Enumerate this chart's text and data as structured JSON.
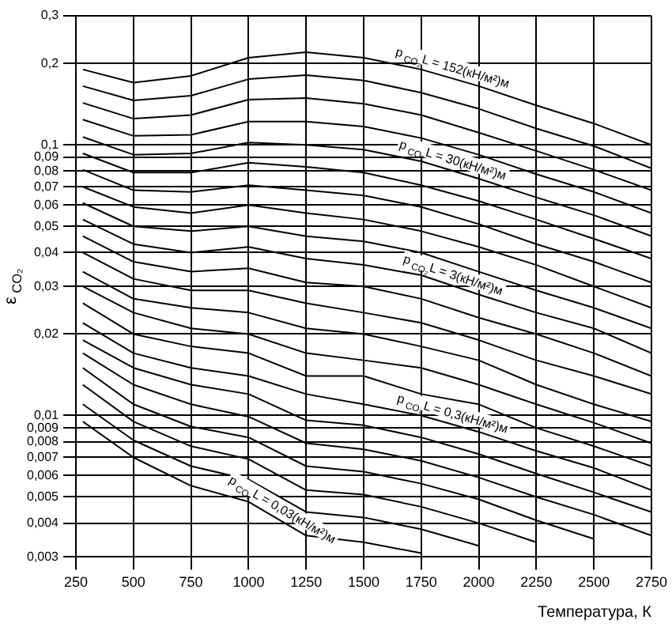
{
  "chart_data": {
    "type": "line",
    "xlabel": "Температура, К",
    "ylabel": "ε$_{CO₂}$",
    "log": "y",
    "grid": true,
    "legend": false,
    "marker": "none",
    "x": [
      280,
      500,
      750,
      1000,
      1250,
      1500,
      1750,
      2000,
      2250,
      2500,
      2750
    ],
    "xlim": [
      250,
      2750
    ],
    "xticks": [
      250,
      500,
      750,
      1000,
      1250,
      1500,
      1750,
      2000,
      2250,
      2500,
      2750
    ],
    "ylim": [
      0.003,
      0.3
    ],
    "yticks": [
      {
        "value": 0.3,
        "label": "0,3"
      },
      {
        "value": 0.2,
        "label": "0,2"
      },
      {
        "value": 0.1,
        "label": "0,1"
      },
      {
        "value": 0.09,
        "label": "0,09"
      },
      {
        "value": 0.08,
        "label": "0,08"
      },
      {
        "value": 0.07,
        "label": "0,07"
      },
      {
        "value": 0.06,
        "label": "0,06"
      },
      {
        "value": 0.05,
        "label": "0,05"
      },
      {
        "value": 0.04,
        "label": "0,04"
      },
      {
        "value": 0.03,
        "label": "0,03"
      },
      {
        "value": 0.02,
        "label": "0,02"
      },
      {
        "value": 0.01,
        "label": "0,01"
      },
      {
        "value": 0.009,
        "label": "0,009"
      },
      {
        "value": 0.008,
        "label": "0,008"
      },
      {
        "value": 0.007,
        "label": "0,007"
      },
      {
        "value": 0.006,
        "label": "0,006"
      },
      {
        "value": 0.005,
        "label": "0,005"
      },
      {
        "value": 0.004,
        "label": "0,004"
      },
      {
        "value": 0.003,
        "label": "0,003"
      }
    ],
    "series": [
      {
        "name": "p$_{CO₂}$L = 152(кН/м²)м",
        "color": "#000000",
        "values": [
          0.19,
          0.17,
          0.18,
          0.21,
          0.22,
          0.21,
          0.19,
          0.165,
          0.14,
          0.12,
          0.1
        ]
      },
      {
        "color": "#000000",
        "values": [
          0.165,
          0.146,
          0.152,
          0.175,
          0.181,
          0.173,
          0.156,
          0.136,
          0.115,
          0.099,
          0.082
        ]
      },
      {
        "color": "#000000",
        "values": [
          0.143,
          0.125,
          0.129,
          0.147,
          0.149,
          0.142,
          0.129,
          0.111,
          0.095,
          0.081,
          0.068
        ]
      },
      {
        "color": "#000000",
        "values": [
          0.124,
          0.108,
          0.109,
          0.122,
          0.122,
          0.117,
          0.106,
          0.092,
          0.078,
          0.067,
          0.056
        ]
      },
      {
        "name": "p$_{CO₂}$L = 30(кН/м²)м",
        "color": "#000000",
        "values": [
          0.107,
          0.092,
          0.093,
          0.102,
          0.1,
          0.096,
          0.087,
          0.075,
          0.064,
          0.055,
          0.046
        ]
      },
      {
        "color": "#000000",
        "values": [
          0.093,
          0.079,
          0.079,
          0.086,
          0.083,
          0.079,
          0.071,
          0.062,
          0.053,
          0.045,
          0.038
        ]
      },
      {
        "color": "#000000",
        "values": [
          0.081,
          0.068,
          0.067,
          0.071,
          0.068,
          0.065,
          0.059,
          0.051,
          0.043,
          0.037,
          0.031
        ]
      },
      {
        "color": "#000000",
        "values": [
          0.07,
          0.059,
          0.056,
          0.06,
          0.056,
          0.053,
          0.048,
          0.042,
          0.036,
          0.03,
          0.025
        ]
      },
      {
        "color": "#000000",
        "values": [
          0.061,
          0.05,
          0.048,
          0.05,
          0.046,
          0.044,
          0.04,
          0.034,
          0.029,
          0.025,
          0.021
        ]
      },
      {
        "name": "p$_{CO₂}$L = 3(кН/м²)м",
        "color": "#000000",
        "values": [
          0.053,
          0.043,
          0.04,
          0.042,
          0.038,
          0.036,
          0.033,
          0.028,
          0.024,
          0.021,
          0.017
        ]
      },
      {
        "color": "#000000",
        "values": [
          0.046,
          0.037,
          0.034,
          0.035,
          0.031,
          0.03,
          0.027,
          0.023,
          0.02,
          0.017,
          0.014
        ]
      },
      {
        "color": "#000000",
        "values": [
          0.04,
          0.032,
          0.029,
          0.029,
          0.026,
          0.024,
          0.022,
          0.019,
          0.016,
          0.014,
          0.012
        ]
      },
      {
        "color": "#000000",
        "values": [
          0.034,
          0.027,
          0.025,
          0.024,
          0.021,
          0.02,
          0.018,
          0.016,
          0.013,
          0.011,
          0.0095
        ]
      },
      {
        "color": "#000000",
        "values": [
          0.03,
          0.024,
          0.021,
          0.02,
          0.017,
          0.016,
          0.015,
          0.013,
          0.011,
          0.0094,
          0.0079
        ]
      },
      {
        "color": "#000000",
        "values": [
          0.026,
          0.02,
          0.018,
          0.017,
          0.014,
          0.014,
          0.012,
          0.011,
          0.009,
          0.0077,
          0.0065
        ]
      },
      {
        "name": "p$_{CO₂}$L = 0,3(кН/м²)м",
        "color": "#000000",
        "values": [
          0.022,
          0.017,
          0.015,
          0.014,
          0.012,
          0.011,
          0.01,
          0.0087,
          0.0074,
          0.0064,
          0.0053
        ]
      },
      {
        "color": "#000000",
        "values": [
          0.019,
          0.015,
          0.013,
          0.012,
          0.0096,
          0.0092,
          0.0083,
          0.0072,
          0.0061,
          0.0052,
          0.0044
        ]
      },
      {
        "color": "#000000",
        "values": [
          0.017,
          0.013,
          0.011,
          0.0099,
          0.0079,
          0.0075,
          0.0068,
          0.0059,
          0.005,
          0.0043,
          0.0036
        ]
      },
      {
        "color": "#000000",
        "values": [
          0.015,
          0.011,
          0.0091,
          0.0083,
          0.0065,
          0.0062,
          0.0056,
          0.0049,
          0.0041,
          0.0035,
          null
        ]
      },
      {
        "color": "#000000",
        "values": [
          0.013,
          0.0095,
          0.0077,
          0.0069,
          0.0053,
          0.0051,
          0.0046,
          0.004,
          0.0034,
          null,
          null
        ]
      },
      {
        "color": "#000000",
        "values": [
          0.011,
          0.0081,
          0.0065,
          0.0058,
          0.0044,
          0.0042,
          0.0038,
          0.0033,
          null,
          null,
          null
        ]
      },
      {
        "name": "p$_{CO₂}$L = 0,03(кН/м²)м",
        "color": "#000000",
        "values": [
          0.0095,
          0.007,
          0.0055,
          0.0048,
          0.0036,
          0.0034,
          0.0031,
          null,
          null,
          null,
          null
        ]
      }
    ]
  }
}
